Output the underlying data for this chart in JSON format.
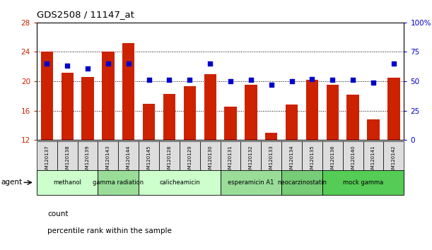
{
  "title": "GDS2508 / 11147_at",
  "samples": [
    "GSM120137",
    "GSM120138",
    "GSM120139",
    "GSM120143",
    "GSM120144",
    "GSM120145",
    "GSM120128",
    "GSM120129",
    "GSM120130",
    "GSM120131",
    "GSM120132",
    "GSM120133",
    "GSM120134",
    "GSM120135",
    "GSM120136",
    "GSM120140",
    "GSM120141",
    "GSM120142"
  ],
  "counts": [
    24.0,
    21.2,
    20.6,
    24.0,
    25.2,
    16.9,
    18.3,
    19.3,
    21.0,
    16.5,
    19.5,
    13.0,
    16.8,
    20.2,
    19.5,
    18.2,
    14.8,
    20.5
  ],
  "percentiles": [
    65,
    63,
    61,
    65,
    65,
    51,
    51,
    51,
    65,
    50,
    51,
    47,
    50,
    52,
    51,
    51,
    49,
    65
  ],
  "agents": [
    {
      "label": "methanol",
      "start": 0,
      "end": 2,
      "color": "#ccffcc"
    },
    {
      "label": "gamma radiation",
      "start": 3,
      "end": 4,
      "color": "#99dd99"
    },
    {
      "label": "calicheamicin",
      "start": 5,
      "end": 8,
      "color": "#ccffcc"
    },
    {
      "label": "esperamicin A1",
      "start": 9,
      "end": 11,
      "color": "#99dd99"
    },
    {
      "label": "neocarzinostatin",
      "start": 12,
      "end": 13,
      "color": "#77cc77"
    },
    {
      "label": "mock gamma",
      "start": 14,
      "end": 17,
      "color": "#55cc55"
    }
  ],
  "bar_color": "#cc2200",
  "dot_color": "#0000cc",
  "ylim_left": [
    12,
    28
  ],
  "ylim_right": [
    0,
    100
  ],
  "yticks_left": [
    12,
    16,
    20,
    24,
    28
  ],
  "yticks_right": [
    0,
    25,
    50,
    75,
    100
  ],
  "background_color": "#ffffff",
  "plot_bg_color": "#ffffff"
}
